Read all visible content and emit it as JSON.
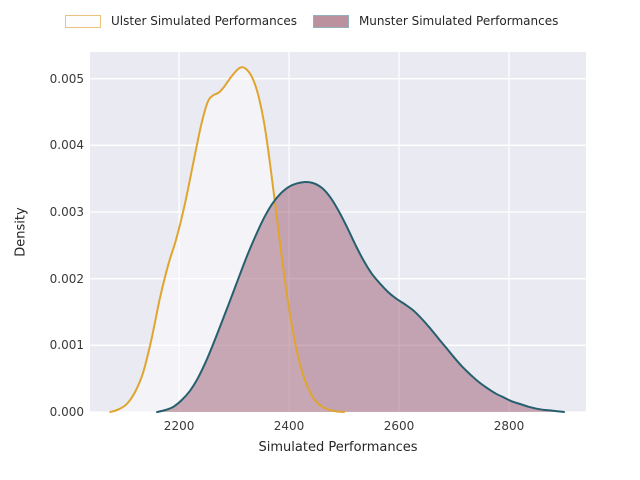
{
  "figure": {
    "background": "#ffffff",
    "plot_background": "#eaeaf2",
    "grid_color": "#ffffff",
    "text_color": "#262626"
  },
  "legend": {
    "items": [
      {
        "label": "Ulster Simulated Performances",
        "swatch_fill": "#fdfdfd",
        "swatch_border": "#eac47c"
      },
      {
        "label": "Munster Simulated Performances",
        "swatch_fill": "#bb919d",
        "swatch_border": "#92b1bd"
      }
    ]
  },
  "chart_data": {
    "type": "area",
    "title": "",
    "xlabel": "Simulated Performances",
    "ylabel": "Density",
    "xlim": [
      2038,
      2940
    ],
    "ylim": [
      0,
      0.0054
    ],
    "grid": true,
    "legend_position": "top",
    "x_ticks": [
      {
        "v": 2200,
        "label": "2200"
      },
      {
        "v": 2400,
        "label": "2400"
      },
      {
        "v": 2600,
        "label": "2600"
      },
      {
        "v": 2800,
        "label": "2800"
      }
    ],
    "y_ticks": [
      {
        "v": 0.0,
        "label": "0.000"
      },
      {
        "v": 0.001,
        "label": "0.001"
      },
      {
        "v": 0.002,
        "label": "0.002"
      },
      {
        "v": 0.003,
        "label": "0.003"
      },
      {
        "v": 0.004,
        "label": "0.004"
      },
      {
        "v": 0.005,
        "label": "0.005"
      }
    ],
    "series": [
      {
        "name": "Ulster Simulated Performances",
        "line_color": "#dfa52e",
        "fill_color": "rgba(255,255,255,0.45)",
        "peak": {
          "x": 2316,
          "y": 0.00517
        },
        "x": [
          2075,
          2090,
          2105,
          2120,
          2135,
          2150,
          2165,
          2180,
          2195,
          2210,
          2225,
          2240,
          2252,
          2262,
          2272,
          2282,
          2295,
          2308,
          2316,
          2325,
          2335,
          2345,
          2355,
          2365,
          2375,
          2385,
          2395,
          2405,
          2415,
          2425,
          2435,
          2445,
          2455,
          2470,
          2485,
          2500
        ],
        "y": [
          0,
          4e-05,
          0.00012,
          0.0003,
          0.0006,
          0.0011,
          0.0017,
          0.0022,
          0.0026,
          0.0031,
          0.0037,
          0.0043,
          0.00465,
          0.00475,
          0.00479,
          0.00488,
          0.00503,
          0.00515,
          0.00517,
          0.00512,
          0.00498,
          0.00472,
          0.00432,
          0.00375,
          0.0031,
          0.00243,
          0.00182,
          0.0013,
          0.00088,
          0.00057,
          0.00035,
          0.0002,
          0.00011,
          4e-05,
          1e-05,
          0
        ]
      },
      {
        "name": "Munster Simulated Performances",
        "line_color": "#265f6e",
        "fill_color": "rgba(156,92,112,0.5)",
        "peak": {
          "x": 2430,
          "y": 0.00345
        },
        "x": [
          2160,
          2175,
          2190,
          2205,
          2220,
          2235,
          2250,
          2265,
          2280,
          2295,
          2310,
          2325,
          2340,
          2355,
          2370,
          2385,
          2400,
          2415,
          2430,
          2445,
          2460,
          2475,
          2490,
          2505,
          2520,
          2535,
          2550,
          2565,
          2580,
          2595,
          2610,
          2625,
          2640,
          2655,
          2670,
          2685,
          2700,
          2715,
          2730,
          2745,
          2760,
          2775,
          2790,
          2805,
          2820,
          2835,
          2850,
          2865,
          2880,
          2900
        ],
        "y": [
          0,
          3e-05,
          8e-05,
          0.00018,
          0.00032,
          0.00052,
          0.00078,
          0.00108,
          0.0014,
          0.00172,
          0.00205,
          0.00237,
          0.00266,
          0.00292,
          0.00313,
          0.00328,
          0.00338,
          0.00343,
          0.00345,
          0.00343,
          0.00336,
          0.00322,
          0.00302,
          0.00278,
          0.00252,
          0.00228,
          0.00208,
          0.00193,
          0.0018,
          0.0017,
          0.00162,
          0.00153,
          0.00141,
          0.00127,
          0.00112,
          0.00097,
          0.00082,
          0.00068,
          0.00056,
          0.00045,
          0.00036,
          0.00028,
          0.00022,
          0.00016,
          0.00012,
          8e-05,
          5e-05,
          3e-05,
          2e-05,
          0
        ]
      }
    ]
  }
}
